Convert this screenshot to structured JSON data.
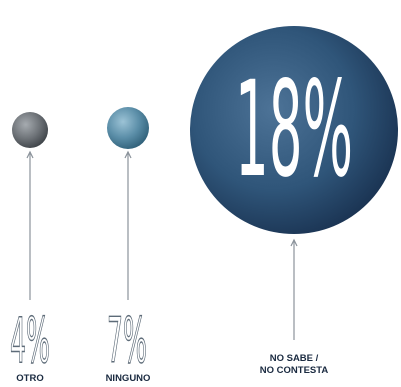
{
  "chart_data": {
    "type": "bubble",
    "unit": "%",
    "items": [
      {
        "label": "OTRO",
        "value": 4,
        "value_text": "4%",
        "color": "#6f7479"
      },
      {
        "label": "NINGUNO",
        "value": 7,
        "value_text": "7%",
        "color": "#5b8ea8"
      },
      {
        "label": "NO SABE / NO CONTESTA",
        "label_lines": [
          "NO SABE /",
          "NO CONTESTA"
        ],
        "value": 18,
        "value_text": "18%",
        "color": "#2f5579"
      }
    ]
  },
  "colors": {
    "label_text": "#1a2a40",
    "number_text": "#5d6b78",
    "connector": "#8b939b",
    "big_number_text": "#ffffff"
  }
}
